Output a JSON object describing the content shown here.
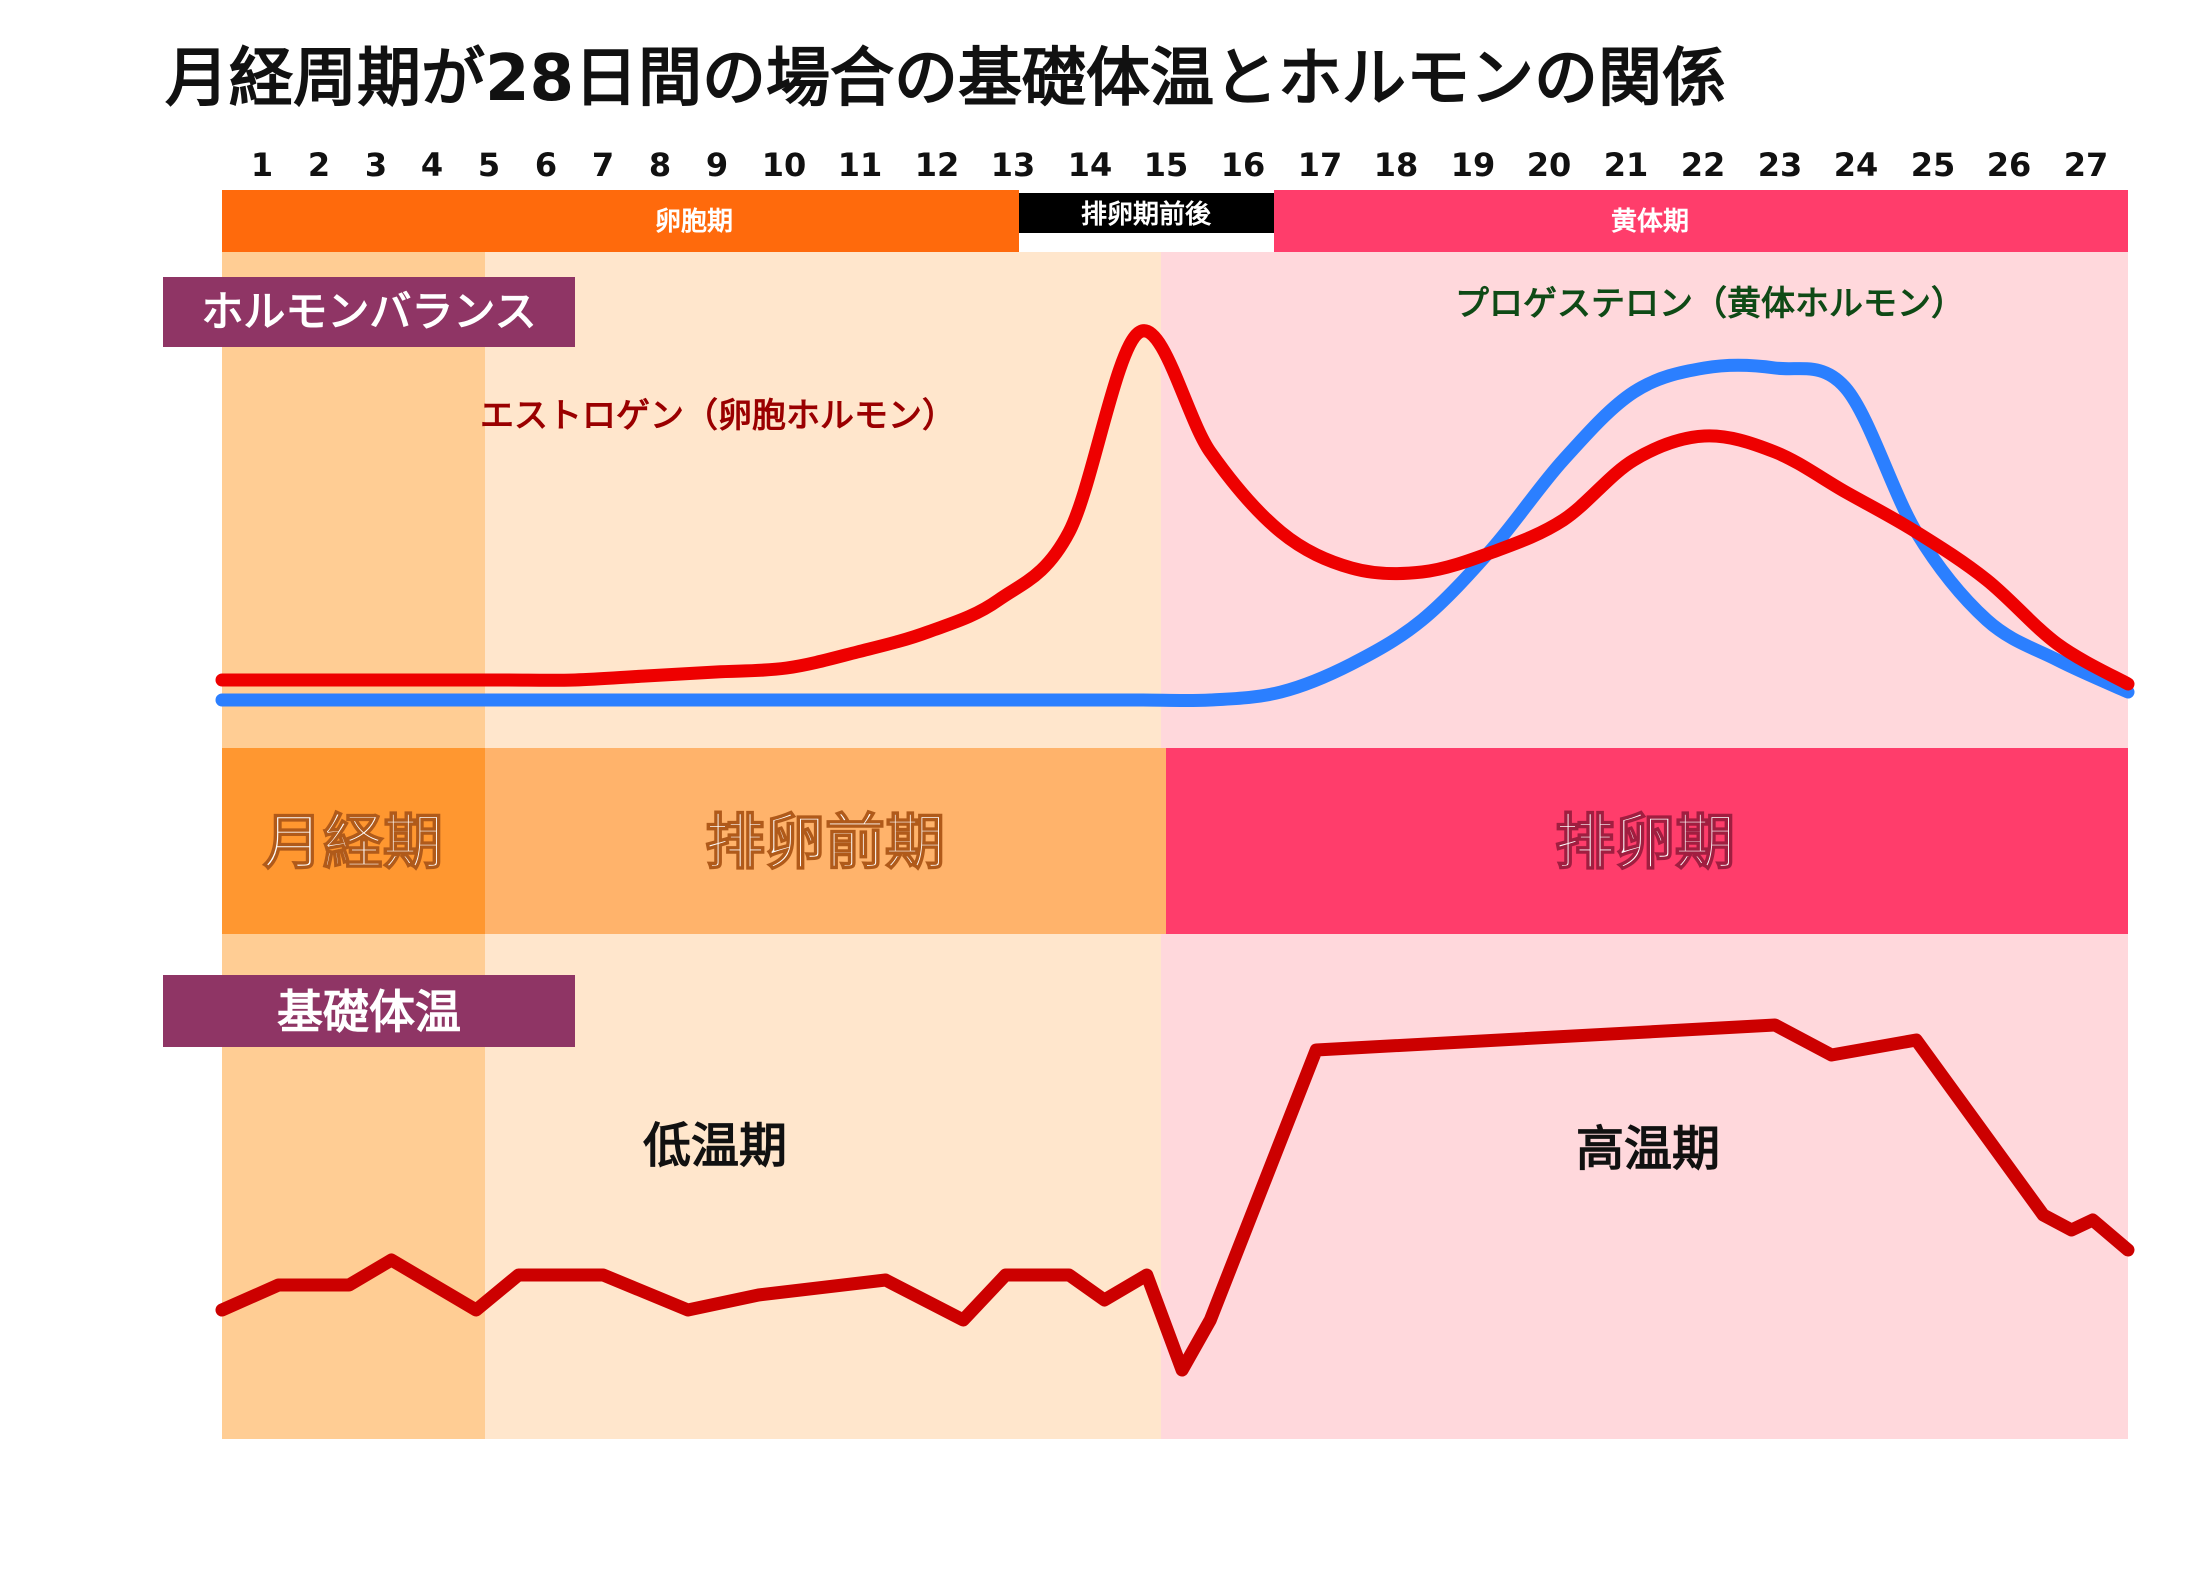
{
  "title": "月経周期が28日間の場合の基礎体温とホルモンの関係",
  "days": [
    "1",
    "2",
    "3",
    "4",
    "5",
    "6",
    "7",
    "8",
    "9",
    "10",
    "11",
    "12",
    "13",
    "14",
    "15",
    "16",
    "17",
    "18",
    "19",
    "20",
    "21",
    "22",
    "23",
    "24",
    "25",
    "26",
    "27"
  ],
  "top_phases": [
    {
      "label": "卵胞期",
      "color": "#ff6a0c"
    },
    {
      "label": "排卵期前後",
      "color": "#000000"
    },
    {
      "label": "黄体期",
      "color": "#ff3d6b"
    }
  ],
  "section_labels": {
    "hormone": "ホルモンバランス",
    "bbt": "基礎体温"
  },
  "section_label_color": "#8f3565",
  "middle_phases": [
    {
      "label": "月経期",
      "color": "#ff9730"
    },
    {
      "label": "排卵前期",
      "color": "#ffb36b"
    },
    {
      "label": "排卵期",
      "color": "#ff3d6b"
    }
  ],
  "temperature_labels": {
    "low": "低温期",
    "high": "高温期"
  },
  "background_colors": {
    "menstrual": "#ffcd94",
    "follicular": "#ffe6cc",
    "luteal": "#ffd8dc"
  },
  "chart_data": [
    {
      "type": "line",
      "title": "ホルモンバランス",
      "x": [
        1,
        2,
        3,
        4,
        5,
        6,
        7,
        8,
        9,
        10,
        11,
        12,
        13,
        14,
        15,
        16,
        17,
        18,
        19,
        20,
        21,
        22,
        23,
        24,
        25,
        26,
        27,
        28
      ],
      "series": [
        {
          "name": "エストロゲン（卵胞ホルモン）",
          "color": "#ee0000",
          "values": [
            0.05,
            0.05,
            0.05,
            0.05,
            0.05,
            0.05,
            0.06,
            0.07,
            0.08,
            0.12,
            0.17,
            0.25,
            0.42,
            0.92,
            0.62,
            0.42,
            0.33,
            0.32,
            0.37,
            0.45,
            0.6,
            0.66,
            0.62,
            0.52,
            0.42,
            0.3,
            0.14,
            0.04
          ]
        },
        {
          "name": "プロゲステロン（黄体ホルモン）",
          "color": "#2b7fff",
          "values": [
            0.0,
            0.0,
            0.0,
            0.0,
            0.0,
            0.0,
            0.0,
            0.0,
            0.0,
            0.0,
            0.0,
            0.0,
            0.0,
            0.0,
            0.0,
            0.02,
            0.09,
            0.2,
            0.38,
            0.6,
            0.77,
            0.83,
            0.83,
            0.78,
            0.42,
            0.2,
            0.1,
            0.02
          ]
        }
      ]
    },
    {
      "type": "line",
      "title": "基礎体温",
      "x": [
        1,
        1.8,
        2.8,
        3.4,
        4.6,
        5.2,
        6.4,
        7.6,
        8.6,
        10.4,
        11.5,
        12.1,
        13.0,
        13.5,
        14.1,
        14.6,
        15.0,
        16.5,
        23.0,
        23.8,
        25.0,
        26.8,
        27.2,
        27.5,
        28.0
      ],
      "series": [
        {
          "name": "基礎体温",
          "color": "#cc0000",
          "values": [
            0.26,
            0.31,
            0.31,
            0.36,
            0.26,
            0.33,
            0.33,
            0.26,
            0.29,
            0.32,
            0.24,
            0.33,
            0.33,
            0.28,
            0.33,
            0.14,
            0.24,
            0.78,
            0.83,
            0.77,
            0.8,
            0.45,
            0.42,
            0.44,
            0.38
          ]
        }
      ]
    }
  ]
}
